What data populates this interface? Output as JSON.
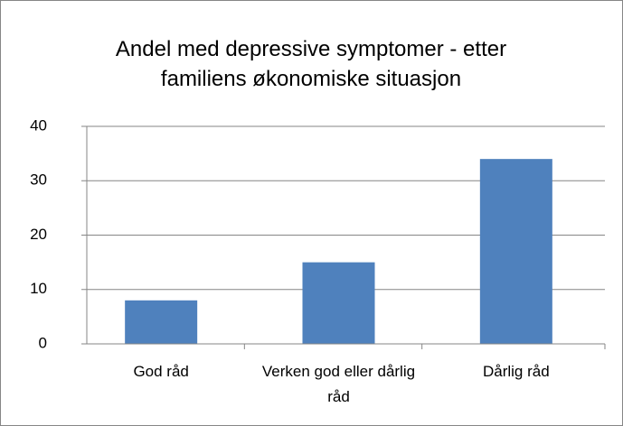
{
  "chart_data": {
    "type": "bar",
    "title": "Andel med depressive symptomer - etter familiens økonomiske situasjon",
    "categories": [
      "God råd",
      "Verken god eller dårlig råd",
      "Dårlig råd"
    ],
    "values": [
      8,
      15,
      34
    ],
    "color": "#4f81bd",
    "ylim": [
      0,
      40
    ],
    "yticks": [
      0,
      10,
      20,
      30,
      40
    ],
    "grid": true
  }
}
